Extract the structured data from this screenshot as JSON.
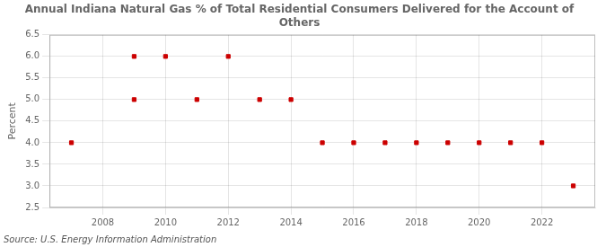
{
  "chart_data": {
    "type": "scatter",
    "title": "Annual Indiana Natural Gas % of Total Residential Consumers Delivered for the Account of\nOthers",
    "ylabel": "Percent",
    "annotations": [
      "Source: U.S. Energy Information Administration"
    ],
    "x": [
      2007,
      2009,
      2009,
      2010,
      2011,
      2012,
      2013,
      2014,
      2015,
      2016,
      2017,
      2018,
      2019,
      2020,
      2021,
      2022,
      2023
    ],
    "values": [
      4.0,
      5.0,
      6.0,
      6.0,
      5.0,
      6.0,
      5.0,
      5.0,
      4.0,
      4.0,
      4.0,
      4.0,
      4.0,
      4.0,
      4.0,
      4.0,
      3.0
    ],
    "color": "#cc0000",
    "marker": "square",
    "xlim": [
      2006.3,
      2023.7
    ],
    "xticks": [
      2008,
      2010,
      2012,
      2014,
      2016,
      2018,
      2020,
      2022
    ],
    "ylim": [
      2.5,
      6.5
    ],
    "yticks": [
      2.5,
      {
        "value": 3.0,
        "label": "3.0"
      },
      3.5,
      {
        "value": 4.0,
        "label": "4.0"
      },
      4.5,
      {
        "value": 5.0,
        "label": "5.0"
      },
      5.5,
      {
        "value": 6.0,
        "label": "6.0"
      },
      6.5
    ],
    "grid": true
  }
}
